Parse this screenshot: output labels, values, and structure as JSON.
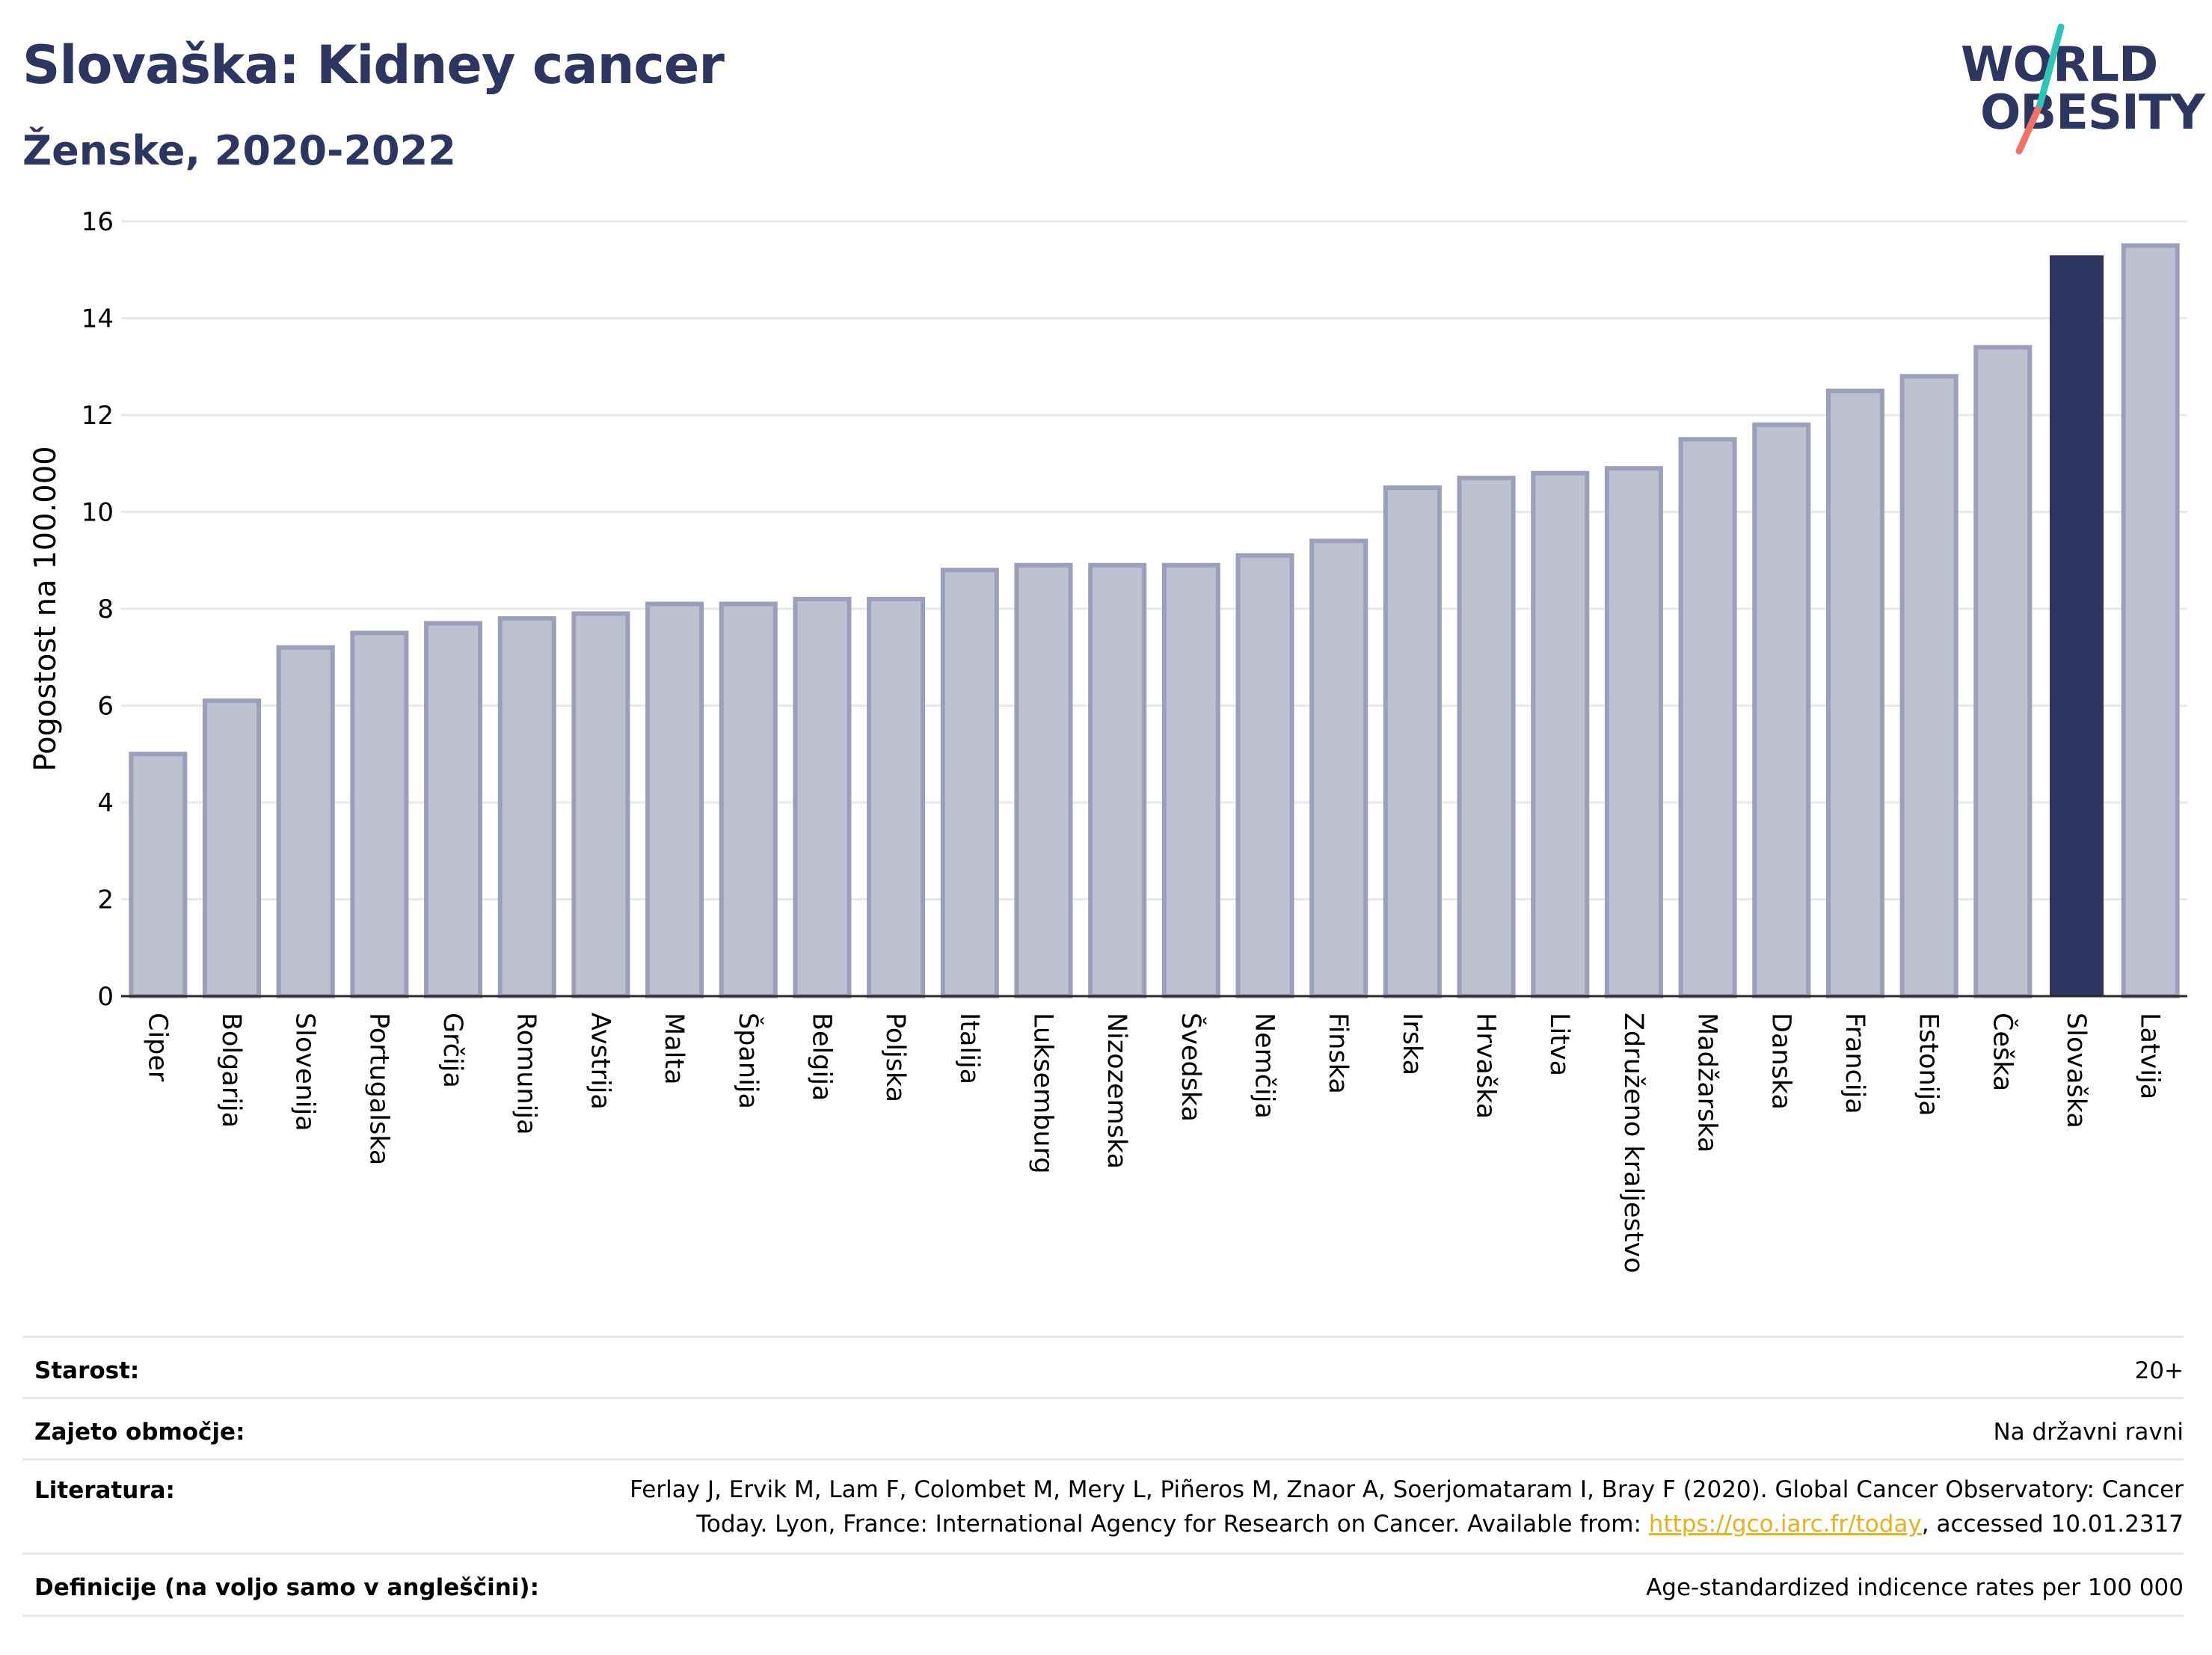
{
  "title": "Slovaška: Kidney cancer",
  "subtitle": "Ženske, 2020-2022",
  "logo": {
    "line1": "WORLD",
    "line2": "OBESITY"
  },
  "colors": {
    "bar_default": "#bec1d0",
    "bar_default_border": "#9aa0b9",
    "bar_highlight": "#2d3561",
    "title": "#2d3561",
    "logo_accent_teal": "#2ec4b6",
    "logo_accent_coral": "#f07167",
    "link": "#e8b01e"
  },
  "chart_data": {
    "type": "bar",
    "ylabel": "Pogostost na 100.000",
    "ylim": [
      0,
      16
    ],
    "yticks": [
      0,
      2,
      4,
      6,
      8,
      10,
      12,
      14,
      16
    ],
    "grid": true,
    "highlight": "Slovaška",
    "categories": [
      "Ciper",
      "Bolgarija",
      "Slovenija",
      "Portugalska",
      "Grčija",
      "Romunija",
      "Avstrija",
      "Malta",
      "Španija",
      "Belgija",
      "Poljska",
      "Italija",
      "Luksemburg",
      "Nizozemska",
      "Švedska",
      "Nemčija",
      "Finska",
      "Irska",
      "Hrvaška",
      "Litva",
      "Združeno kraljestvo",
      "Madžarska",
      "Danska",
      "Francija",
      "Estonija",
      "Češka",
      "Slovaška",
      "Latvija"
    ],
    "values": [
      5.0,
      6.1,
      7.2,
      7.5,
      7.7,
      7.8,
      7.9,
      8.1,
      8.1,
      8.2,
      8.2,
      8.8,
      8.9,
      8.9,
      8.9,
      9.1,
      9.4,
      10.5,
      10.7,
      10.8,
      10.9,
      11.5,
      11.8,
      12.5,
      12.8,
      13.4,
      15.3,
      15.5
    ]
  },
  "info": {
    "age_label": "Starost:",
    "age_value": "20+",
    "coverage_label": "Zajeto območje:",
    "coverage_value": "Na državni ravni",
    "ref_label": "Literatura:",
    "ref_text_1": "Ferlay J, Ervik M, Lam F, Colombet M, Mery L, Piñeros M, Znaor A, Soerjomataram I, Bray F (2020). Global Cancer Observatory: Cancer Today. Lyon, France: International Agency for Research on Cancer. Available from: ",
    "ref_link": "https://gco.iarc.fr/today",
    "ref_text_2": ", accessed 10.01.2317",
    "def_label": "Definicije (na voljo samo v angleščini):",
    "def_value": "Age-standardized indicence rates per 100 000"
  }
}
